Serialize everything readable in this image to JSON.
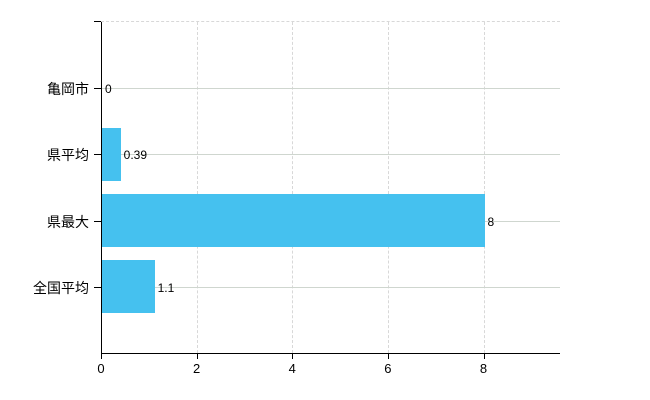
{
  "chart_data": {
    "type": "bar",
    "orientation": "horizontal",
    "title": "",
    "xlabel": "",
    "ylabel": "",
    "categories": [
      "亀岡市",
      "県平均",
      "県最大",
      "全国平均"
    ],
    "values": [
      0,
      0.39,
      8,
      1.1
    ],
    "value_labels": [
      "0",
      "0.39",
      "8",
      "1.1"
    ],
    "xlim": [
      0,
      9.6
    ],
    "x_ticks": [
      0,
      2,
      4,
      6,
      8
    ],
    "x_tick_labels": [
      "0",
      "2",
      "4",
      "6",
      "8"
    ],
    "grid": true,
    "legend": false,
    "bar_color": "#45c1ef",
    "h_grid_color": "#cfd6cf",
    "v_grid_color": "#d8d8d8",
    "axis_color": "#000000",
    "text_color": "#000000",
    "background_color": "#ffffff"
  }
}
